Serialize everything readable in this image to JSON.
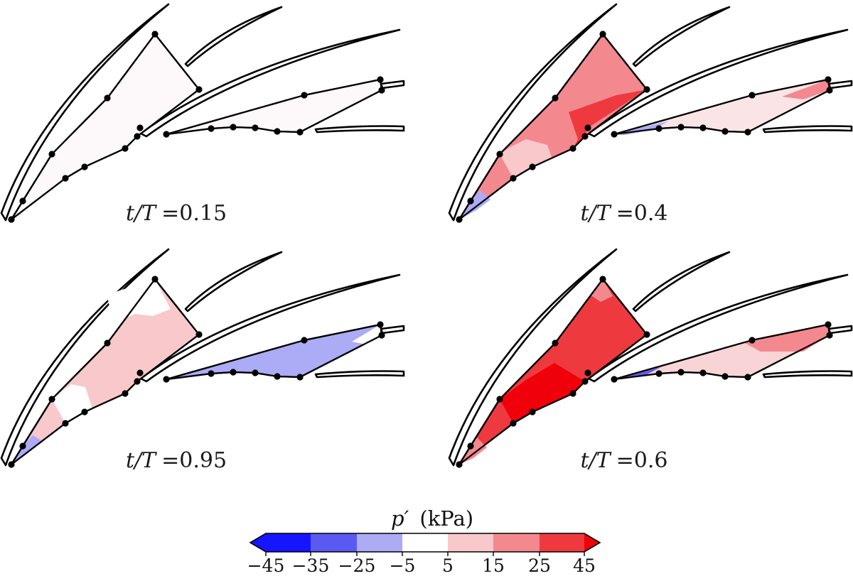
{
  "colors": {
    "cold_3": "#1515ff",
    "cold_2": "#5a5af2",
    "cold_1": "#ababf6",
    "neutral": "#ffffff",
    "warm_1": "#f9c8cb",
    "warm_2": "#f3898f",
    "warm_3": "#ee3a3f",
    "warm_max": "#f0000a"
  },
  "panels": [
    {
      "id": "p1",
      "label_prefix": "t/T",
      "label_value": "=0.15",
      "main_fill": "#fdf8fa",
      "sub_fill": "#fdf8fa"
    },
    {
      "id": "p2",
      "label_prefix": "t/T",
      "label_value": "=0.4",
      "main_fill": "#f3898f",
      "sub_fill": "#fbe4e6"
    },
    {
      "id": "p3",
      "label_prefix": "t/T",
      "label_value": "=0.95",
      "main_fill": "#f9c8cb",
      "sub_fill": "#ababf6"
    },
    {
      "id": "p4",
      "label_prefix": "t/T",
      "label_value": "=0.6",
      "main_fill": "#ee3a3f",
      "sub_fill": "#f9d4d7"
    }
  ],
  "colorbar": {
    "title_symbol": "p′",
    "title_unit": "(kPa)",
    "ticks": [
      "−45",
      "−35",
      "−25",
      "−5",
      "5",
      "15",
      "25",
      "45"
    ],
    "segments": [
      "#1515ff",
      "#5a5af2",
      "#ababf6",
      "#ffffff",
      "#f9c8cb",
      "#f3898f",
      "#ee3a3f"
    ]
  }
}
